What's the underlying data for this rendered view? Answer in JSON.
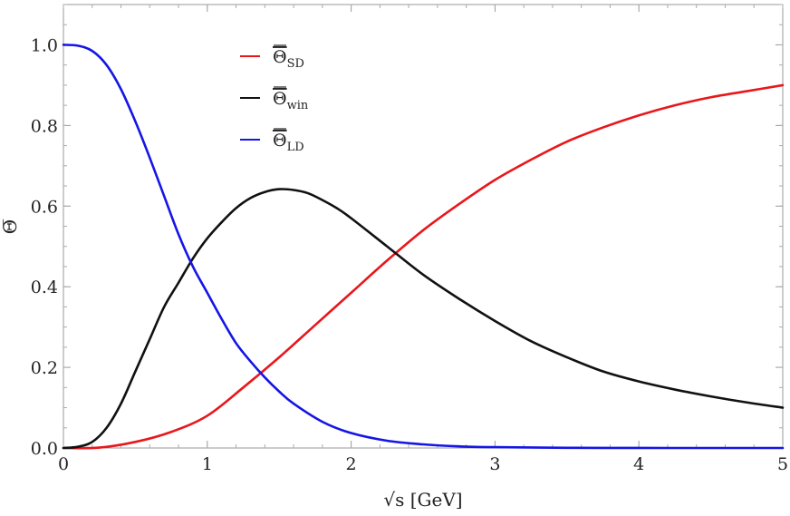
{
  "chart_data": {
    "type": "line",
    "xlabel": "√s [GeV]",
    "ylabel": "Θ̅",
    "xlim": [
      0,
      5
    ],
    "ylim": [
      0,
      1.1
    ],
    "grid": false,
    "legend_position": "top-center",
    "x_ticks": [
      0,
      1,
      2,
      3,
      4,
      5
    ],
    "x_tick_labels": [
      "0",
      "1",
      "2",
      "3",
      "4",
      "5"
    ],
    "y_ticks": [
      0,
      0.2,
      0.4,
      0.6,
      0.8,
      1.0
    ],
    "y_tick_labels": [
      "0.0",
      "0.2",
      "0.4",
      "0.6",
      "0.8",
      "1.0"
    ],
    "series": [
      {
        "name": "Θ̅SD",
        "base": "Θ",
        "subscript": "SD",
        "color": "#e8171b",
        "x": [
          0,
          0.25,
          0.5,
          0.75,
          1.0,
          1.25,
          1.5,
          1.75,
          2.0,
          2.25,
          2.5,
          2.75,
          3.0,
          3.25,
          3.5,
          3.75,
          4.0,
          4.25,
          4.5,
          4.75,
          5.0
        ],
        "y": [
          0,
          0.001,
          0.015,
          0.04,
          0.08,
          0.15,
          0.225,
          0.305,
          0.385,
          0.465,
          0.54,
          0.605,
          0.665,
          0.715,
          0.76,
          0.795,
          0.825,
          0.85,
          0.87,
          0.885,
          0.9
        ]
      },
      {
        "name": "Θ̅win",
        "base": "Θ",
        "subscript": "win",
        "color": "#111111",
        "x": [
          0,
          0.1,
          0.2,
          0.3,
          0.4,
          0.5,
          0.6,
          0.7,
          0.8,
          0.9,
          1.0,
          1.1,
          1.2,
          1.3,
          1.4,
          1.5,
          1.6,
          1.7,
          1.8,
          1.9,
          2.0,
          2.25,
          2.5,
          2.75,
          3.0,
          3.25,
          3.5,
          3.75,
          4.0,
          4.25,
          4.5,
          4.75,
          5.0
        ],
        "y": [
          0,
          0.003,
          0.015,
          0.05,
          0.11,
          0.19,
          0.27,
          0.35,
          0.41,
          0.47,
          0.52,
          0.56,
          0.595,
          0.62,
          0.635,
          0.642,
          0.64,
          0.632,
          0.615,
          0.595,
          0.57,
          0.5,
          0.43,
          0.37,
          0.315,
          0.265,
          0.225,
          0.19,
          0.165,
          0.145,
          0.128,
          0.113,
          0.1
        ]
      },
      {
        "name": "Θ̅LD",
        "base": "Θ",
        "subscript": "LD",
        "color": "#1515e6",
        "x": [
          0,
          0.1,
          0.2,
          0.3,
          0.4,
          0.5,
          0.6,
          0.7,
          0.8,
          0.9,
          1.0,
          1.1,
          1.2,
          1.3,
          1.4,
          1.5,
          1.6,
          1.8,
          2.0,
          2.25,
          2.5,
          2.75,
          3.0,
          3.5,
          4.0,
          4.5,
          5.0
        ],
        "y": [
          1.0,
          0.998,
          0.985,
          0.95,
          0.89,
          0.81,
          0.72,
          0.625,
          0.53,
          0.45,
          0.385,
          0.32,
          0.26,
          0.215,
          0.175,
          0.14,
          0.11,
          0.065,
          0.037,
          0.018,
          0.009,
          0.004,
          0.002,
          0.0005,
          0.0001,
          0,
          0
        ]
      }
    ]
  }
}
